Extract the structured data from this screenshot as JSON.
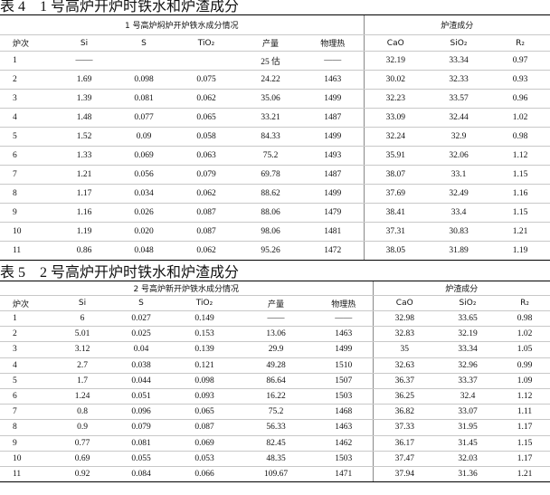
{
  "tables": [
    {
      "title": "表 4　1 号高炉开炉时铁水和炉渣成分",
      "groups": [
        "1 号高炉焖炉开炉铁水成分情况",
        "炉渣成分"
      ],
      "columns": [
        "炉次",
        "Si",
        "S",
        "TiO₂",
        "产量",
        "物理热",
        "CaO",
        "SiO₂",
        "R₂"
      ],
      "rows": [
        [
          "1",
          "——",
          null,
          null,
          "25 估",
          "——",
          "32.19",
          "33.34",
          "0.97"
        ],
        [
          "2",
          "1.69",
          "0.098",
          "0.075",
          "24.22",
          "1463",
          "30.02",
          "32.33",
          "0.93"
        ],
        [
          "3",
          "1.39",
          "0.081",
          "0.062",
          "35.06",
          "1499",
          "32.23",
          "33.57",
          "0.96"
        ],
        [
          "4",
          "1.48",
          "0.077",
          "0.065",
          "33.21",
          "1487",
          "33.09",
          "32.44",
          "1.02"
        ],
        [
          "5",
          "1.52",
          "0.09",
          "0.058",
          "84.33",
          "1499",
          "32.24",
          "32.9",
          "0.98"
        ],
        [
          "6",
          "1.33",
          "0.069",
          "0.063",
          "75.2",
          "1493",
          "35.91",
          "32.06",
          "1.12"
        ],
        [
          "7",
          "1.21",
          "0.056",
          "0.079",
          "69.78",
          "1487",
          "38.07",
          "33.1",
          "1.15"
        ],
        [
          "8",
          "1.17",
          "0.034",
          "0.062",
          "88.62",
          "1499",
          "37.69",
          "32.49",
          "1.16"
        ],
        [
          "9",
          "1.16",
          "0.026",
          "0.087",
          "88.06",
          "1479",
          "38.41",
          "33.4",
          "1.15"
        ],
        [
          "10",
          "1.19",
          "0.020",
          "0.087",
          "98.06",
          "1481",
          "37.31",
          "30.83",
          "1.21"
        ],
        [
          "11",
          "0.86",
          "0.048",
          "0.062",
          "95.26",
          "1472",
          "38.05",
          "31.89",
          "1.19"
        ]
      ]
    },
    {
      "title": "表 5　2 号高炉开炉时铁水和炉渣成分",
      "groups": [
        "2 号高炉新开炉铁水成分情况",
        "炉渣成分"
      ],
      "columns": [
        "炉次",
        "Si",
        "S",
        "TiO₂",
        "产量",
        "物理热",
        "CaO",
        "SiO₂",
        "R₂"
      ],
      "rows": [
        [
          "1",
          "6",
          "0.027",
          "0.149",
          "——",
          "——",
          "32.98",
          "33.65",
          "0.98"
        ],
        [
          "2",
          "5.01",
          "0.025",
          "0.153",
          "13.06",
          "1463",
          "32.83",
          "32.19",
          "1.02"
        ],
        [
          "3",
          "3.12",
          "0.04",
          "0.139",
          "29.9",
          "1499",
          "35",
          "33.34",
          "1.05"
        ],
        [
          "4",
          "2.7",
          "0.038",
          "0.121",
          "49.28",
          "1510",
          "32.63",
          "32.96",
          "0.99"
        ],
        [
          "5",
          "1.7",
          "0.044",
          "0.098",
          "86.64",
          "1507",
          "36.37",
          "33.37",
          "1.09"
        ],
        [
          "6",
          "1.24",
          "0.051",
          "0.093",
          "16.22",
          "1503",
          "36.25",
          "32.4",
          "1.12"
        ],
        [
          "7",
          "0.8",
          "0.096",
          "0.065",
          "75.2",
          "1468",
          "36.82",
          "33.07",
          "1.11"
        ],
        [
          "8",
          "0.9",
          "0.079",
          "0.087",
          "56.33",
          "1463",
          "37.33",
          "31.95",
          "1.17"
        ],
        [
          "9",
          "0.77",
          "0.081",
          "0.069",
          "82.45",
          "1462",
          "36.17",
          "31.45",
          "1.15"
        ],
        [
          "10",
          "0.69",
          "0.055",
          "0.053",
          "48.35",
          "1503",
          "37.47",
          "32.03",
          "1.17"
        ],
        [
          "11",
          "0.92",
          "0.084",
          "0.066",
          "109.67",
          "1471",
          "37.94",
          "31.36",
          "1.21"
        ]
      ]
    }
  ]
}
